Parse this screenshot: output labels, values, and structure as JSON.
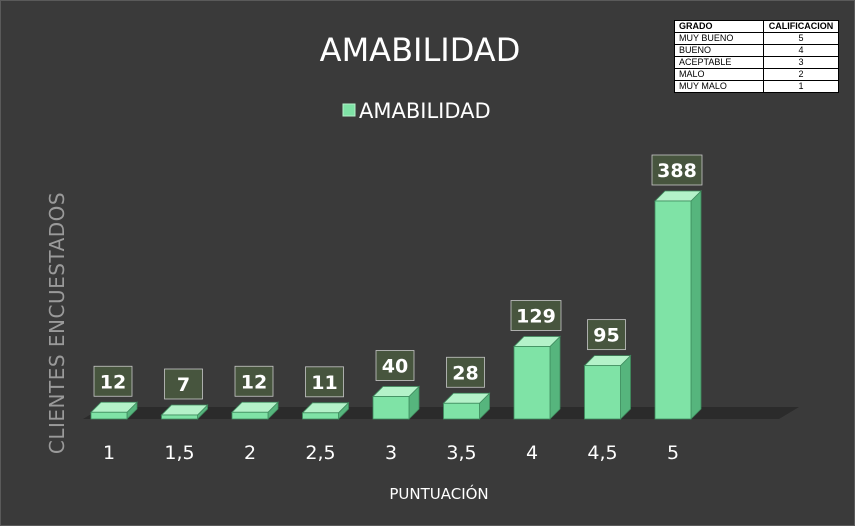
{
  "chart_data": {
    "type": "bar",
    "title": "AMABILIDAD",
    "xlabel": "PUNTUACIÓN",
    "ylabel": "CLIENTES ENCUESTADOS",
    "categories": [
      "1",
      "1,5",
      "2",
      "2,5",
      "3",
      "3,5",
      "4",
      "4,5",
      "5"
    ],
    "series": [
      {
        "name": "AMABILIDAD",
        "values": [
          12,
          7,
          12,
          11,
          40,
          28,
          129,
          95,
          388
        ]
      }
    ],
    "ylim": [
      0,
      400
    ],
    "legend_position": "top-center",
    "grid": false,
    "style": "3d-column",
    "colors": {
      "background": "#3a3a3a",
      "bar_front": "#7fe3a6",
      "bar_side": "#56b57d",
      "bar_top": "#b4f2c9",
      "floor": "#2b2b2b",
      "data_label_bg": "#4a5a40"
    }
  },
  "grade_table": {
    "headers": {
      "grade": "GRADO",
      "score": "CALIFICACION"
    },
    "rows": [
      {
        "grade": "MUY BUENO",
        "score": "5"
      },
      {
        "grade": "BUENO",
        "score": "4"
      },
      {
        "grade": "ACEPTABLE",
        "score": "3"
      },
      {
        "grade": "MALO",
        "score": "2"
      },
      {
        "grade": "MUY MALO",
        "score": "1"
      }
    ]
  }
}
